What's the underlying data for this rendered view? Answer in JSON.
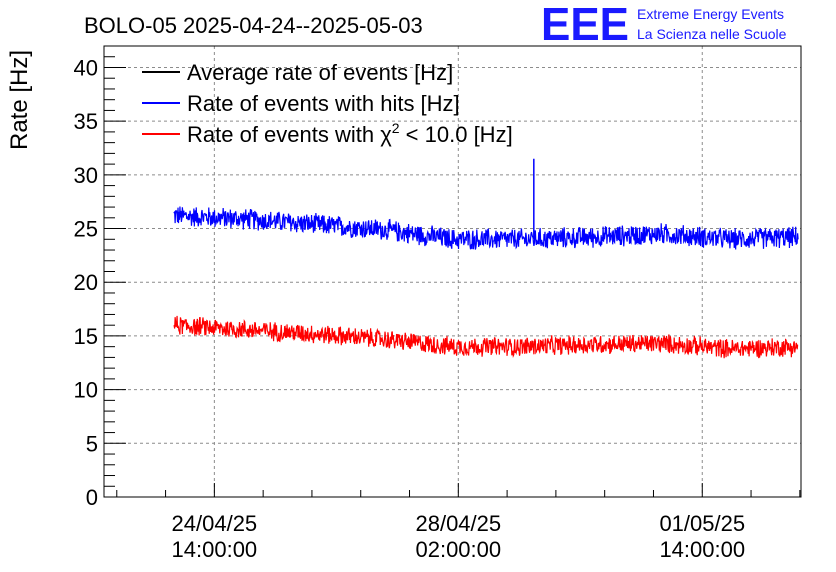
{
  "chart_data": {
    "type": "line",
    "title": "BOLO-05 2025-04-24--2025-05-03",
    "ylabel": "Rate [Hz]",
    "xlabel": "",
    "ylim": [
      0,
      42
    ],
    "y_ticks": [
      0,
      5,
      10,
      15,
      20,
      25,
      30,
      35,
      40
    ],
    "x_axis": {
      "start": "2025-04-23 00:00:00",
      "end": "2025-05-03 00:00:00",
      "tick_labels": [
        {
          "date": "24/04/25",
          "time": "14:00:00",
          "at": "2025-04-24 14:00:00"
        },
        {
          "date": "28/04/25",
          "time": "02:00:00",
          "at": "2025-04-28 02:00:00"
        },
        {
          "date": "01/05/25",
          "time": "14:00:00",
          "at": "2025-05-01 14:00:00"
        }
      ]
    },
    "grid": true,
    "legend_position": "top-left",
    "series": [
      {
        "name": "Average rate of events [Hz]",
        "color": "#000000",
        "values": []
      },
      {
        "name": "Rate of events with hits [Hz]",
        "color": "#0000ff",
        "data_start": "2025-04-24 00:00:00",
        "data_end": "2025-05-02 23:00:00",
        "x": [
          "2025-04-24 00:00:00",
          "2025-04-25 00:00:00",
          "2025-04-26 00:00:00",
          "2025-04-27 00:00:00",
          "2025-04-28 00:00:00",
          "2025-04-29 00:00:00",
          "2025-04-30 00:00:00",
          "2025-05-01 00:00:00",
          "2025-05-02 00:00:00",
          "2025-05-02 23:00:00"
        ],
        "y": [
          26.2,
          25.9,
          25.4,
          24.9,
          24.0,
          24.0,
          24.2,
          24.5,
          24.0,
          24.2
        ],
        "noise": 1.1,
        "spike": {
          "at": "2025-04-29 04:00:00",
          "value": 31.5
        }
      },
      {
        "name": "Rate of events with χ² < 10.0 [Hz]",
        "legend_main": "Rate of events with χ",
        "legend_sup": "2",
        "legend_tail": " < 10.0 [Hz]",
        "color": "#ff0000",
        "data_start": "2025-04-24 00:00:00",
        "data_end": "2025-05-02 23:00:00",
        "x": [
          "2025-04-24 00:00:00",
          "2025-04-25 00:00:00",
          "2025-04-26 00:00:00",
          "2025-04-27 00:00:00",
          "2025-04-28 00:00:00",
          "2025-04-29 00:00:00",
          "2025-04-30 00:00:00",
          "2025-05-01 00:00:00",
          "2025-05-02 00:00:00",
          "2025-05-02 23:00:00"
        ],
        "y": [
          16.0,
          15.6,
          15.2,
          14.7,
          14.0,
          14.0,
          14.2,
          14.3,
          13.8,
          14.0
        ],
        "noise": 1.0
      }
    ]
  },
  "logo": {
    "text": "EEE",
    "line1": "Extreme Energy Events",
    "line2": "La Scienza nelle Scuole",
    "color": "#1a1aff"
  }
}
